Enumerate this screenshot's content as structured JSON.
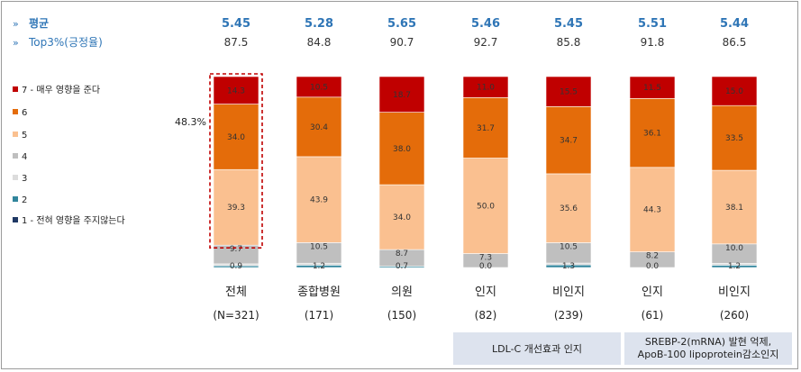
{
  "header": {
    "avg_label": "평균",
    "top_label": "Top3%(긍정율)"
  },
  "annotation": "48.3%",
  "legend": [
    {
      "label": "7 - 매우 영향을 준다",
      "color": "#c00000"
    },
    {
      "label": "6",
      "color": "#e46c0a"
    },
    {
      "label": "5",
      "color": "#fac090"
    },
    {
      "label": "4",
      "color": "#bfbfbf"
    },
    {
      "label": "3",
      "color": "#dcdcdc"
    },
    {
      "label": "2",
      "color": "#31859c"
    },
    {
      "label": "1 - 전혀 영향을 주지않는다",
      "color": "#1f3864"
    }
  ],
  "groups": [
    {
      "label": "LDL-C 개선효과 인지",
      "lines": [
        "LDL-C 개선효과 인지"
      ],
      "span": [
        3,
        4
      ]
    },
    {
      "label": "SREBP-2(mRNA) 발현 억제, ApoB-100 lipoprotein감소인지",
      "lines": [
        "SREBP-2(mRNA) 발현 억제,",
        "ApoB-100 lipoprotein감소인지"
      ],
      "span": [
        5,
        6
      ]
    }
  ],
  "chart_data": {
    "type": "bar",
    "stacked": true,
    "percent": true,
    "categories": [
      "전체",
      "종합병원",
      "의원",
      "인지",
      "비인지",
      "인지",
      "비인지"
    ],
    "n_labels": [
      "(N=321)",
      "(171)",
      "(150)",
      "(82)",
      "(239)",
      "(61)",
      "(260)"
    ],
    "averages": [
      "5.45",
      "5.28",
      "5.65",
      "5.46",
      "5.45",
      "5.51",
      "5.44"
    ],
    "top3": [
      "87.5",
      "84.8",
      "90.7",
      "92.7",
      "85.8",
      "91.8",
      "86.5"
    ],
    "series": [
      {
        "name": "7 - 매우 영향을 준다",
        "values": [
          14.3,
          10.5,
          18.7,
          11.0,
          15.5,
          11.5,
          15.0
        ],
        "labels": [
          "14.3",
          "10.5",
          "18.7",
          "11.0",
          "15.5",
          "11.5",
          "15.0"
        ]
      },
      {
        "name": "6",
        "values": [
          34.0,
          30.4,
          38.0,
          31.7,
          34.7,
          36.1,
          33.5
        ],
        "labels": [
          "34.0",
          "30.4",
          "38.0",
          "31.7",
          "34.7",
          "36.1",
          "33.5"
        ]
      },
      {
        "name": "5",
        "values": [
          39.3,
          43.9,
          34.0,
          50.0,
          35.6,
          44.3,
          38.1
        ],
        "labels": [
          "39.3",
          "43.9",
          "34.0",
          "50.0",
          "35.6",
          "44.3",
          "38.1"
        ]
      },
      {
        "name": "4",
        "values": [
          9.7,
          10.5,
          8.7,
          7.3,
          10.5,
          8.2,
          10.0
        ],
        "labels": [
          "9.7",
          "10.5",
          "8.7",
          "7.3",
          "10.5",
          "8.2",
          "10.0"
        ]
      },
      {
        "name": "3",
        "values": [
          1.0,
          1.0,
          0.0,
          0.0,
          1.0,
          0.0,
          1.0
        ],
        "labels": [
          "",
          "",
          "",
          "",
          "",
          "",
          ""
        ]
      },
      {
        "name": "2",
        "values": [
          0.9,
          1.2,
          0.7,
          0.0,
          1.3,
          0.0,
          1.2
        ],
        "labels": [
          "0.9",
          "1.2",
          "0.7",
          "0.0",
          "1.3",
          "0.0",
          "1.2"
        ]
      },
      {
        "name": "1 - 전혀 영향을 주지않는다",
        "values": [
          0.0,
          0.0,
          0.0,
          0.0,
          0.0,
          0.0,
          0.0
        ],
        "labels": [
          "",
          "",
          "",
          "",
          "",
          "",
          ""
        ]
      }
    ],
    "highlight": {
      "category_index": 0,
      "series": [
        "7 - 매우 영향을 준다",
        "6",
        "5"
      ]
    }
  }
}
